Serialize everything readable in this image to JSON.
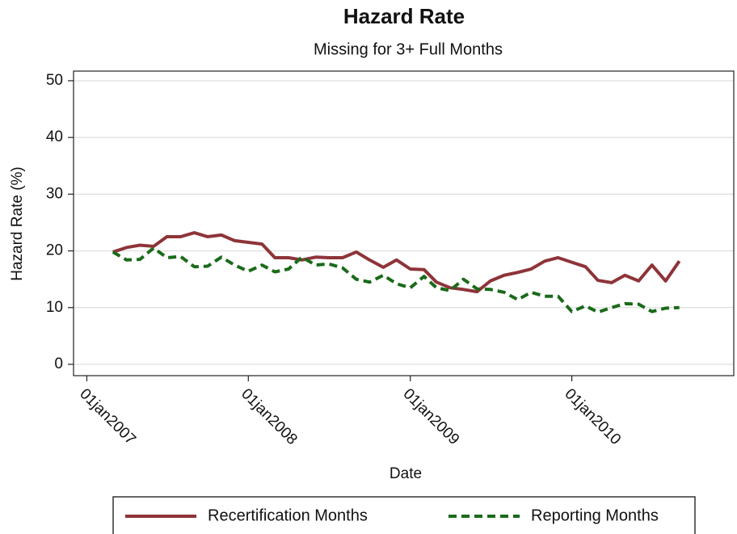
{
  "chart_data": {
    "type": "line",
    "title": "Hazard Rate",
    "subtitle": "Missing for 3+ Full Months",
    "x_label": "Date",
    "y_label": "Hazard Rate (%)",
    "x": [
      "2007-03-01",
      "2007-04-01",
      "2007-05-01",
      "2007-06-01",
      "2007-07-01",
      "2007-08-01",
      "2007-09-01",
      "2007-10-01",
      "2007-11-01",
      "2007-12-01",
      "2008-01-01",
      "2008-02-01",
      "2008-03-01",
      "2008-04-01",
      "2008-05-01",
      "2008-06-01",
      "2008-07-01",
      "2008-08-01",
      "2008-09-01",
      "2008-10-01",
      "2008-11-01",
      "2008-12-01",
      "2009-01-01",
      "2009-02-01",
      "2009-03-01",
      "2009-04-01",
      "2009-05-01",
      "2009-06-01",
      "2009-07-01",
      "2009-08-01",
      "2009-09-01",
      "2009-10-01",
      "2009-11-01",
      "2009-12-01",
      "2010-01-01",
      "2010-02-01",
      "2010-03-01",
      "2010-04-01",
      "2010-05-01",
      "2010-06-01",
      "2010-07-01",
      "2010-08-01",
      "2010-09-01"
    ],
    "series": [
      {
        "name": "Recertification Months",
        "color": "#8e3439",
        "dash": "none",
        "values": [
          19.8,
          20.6,
          21,
          20.8,
          22.5,
          22.5,
          23.2,
          22.5,
          22.8,
          21.8,
          21.5,
          21.2,
          18.8,
          18.8,
          18.4,
          18.9,
          18.8,
          18.8,
          19.8,
          18.4,
          17.1,
          18.4,
          16.8,
          16.7,
          14.5,
          13.5,
          13.2,
          12.8,
          14.7,
          15.7,
          16.2,
          16.8,
          18.2,
          18.8,
          18,
          17.2,
          14.8,
          14.4,
          15.7,
          14.7,
          17.5,
          14.7,
          18.2
        ]
      },
      {
        "name": "Reporting Months",
        "color": "#1a6b1a",
        "dash": "10 6",
        "values": [
          19.8,
          18.4,
          18.5,
          20.5,
          18.8,
          19,
          17.2,
          17.3,
          18.9,
          17.5,
          16.4,
          17.5,
          16.3,
          16.8,
          18.9,
          17.5,
          17.7,
          17,
          15,
          14.5,
          15.7,
          14.2,
          13.5,
          15.5,
          13.5,
          13,
          15,
          13.3,
          13.2,
          12.7,
          11.4,
          12.7,
          12,
          12,
          9.3,
          10.3,
          9.2,
          10,
          10.7,
          10.6,
          9.3,
          9.9,
          10
        ]
      }
    ],
    "xlim": [
      "2006-12-02",
      "2011-01-02"
    ],
    "xticks": [
      {
        "value": "2007-01-01",
        "label": "01jan2007"
      },
      {
        "value": "2008-01-01",
        "label": "01jan2008"
      },
      {
        "value": "2009-01-01",
        "label": "01jan2009"
      },
      {
        "value": "2010-01-01",
        "label": "01jan2010"
      }
    ],
    "ylim": [
      -2,
      51.7
    ],
    "yticks": [
      0,
      10,
      20,
      30,
      40,
      50
    ],
    "grid": true,
    "legend": "bottom"
  }
}
